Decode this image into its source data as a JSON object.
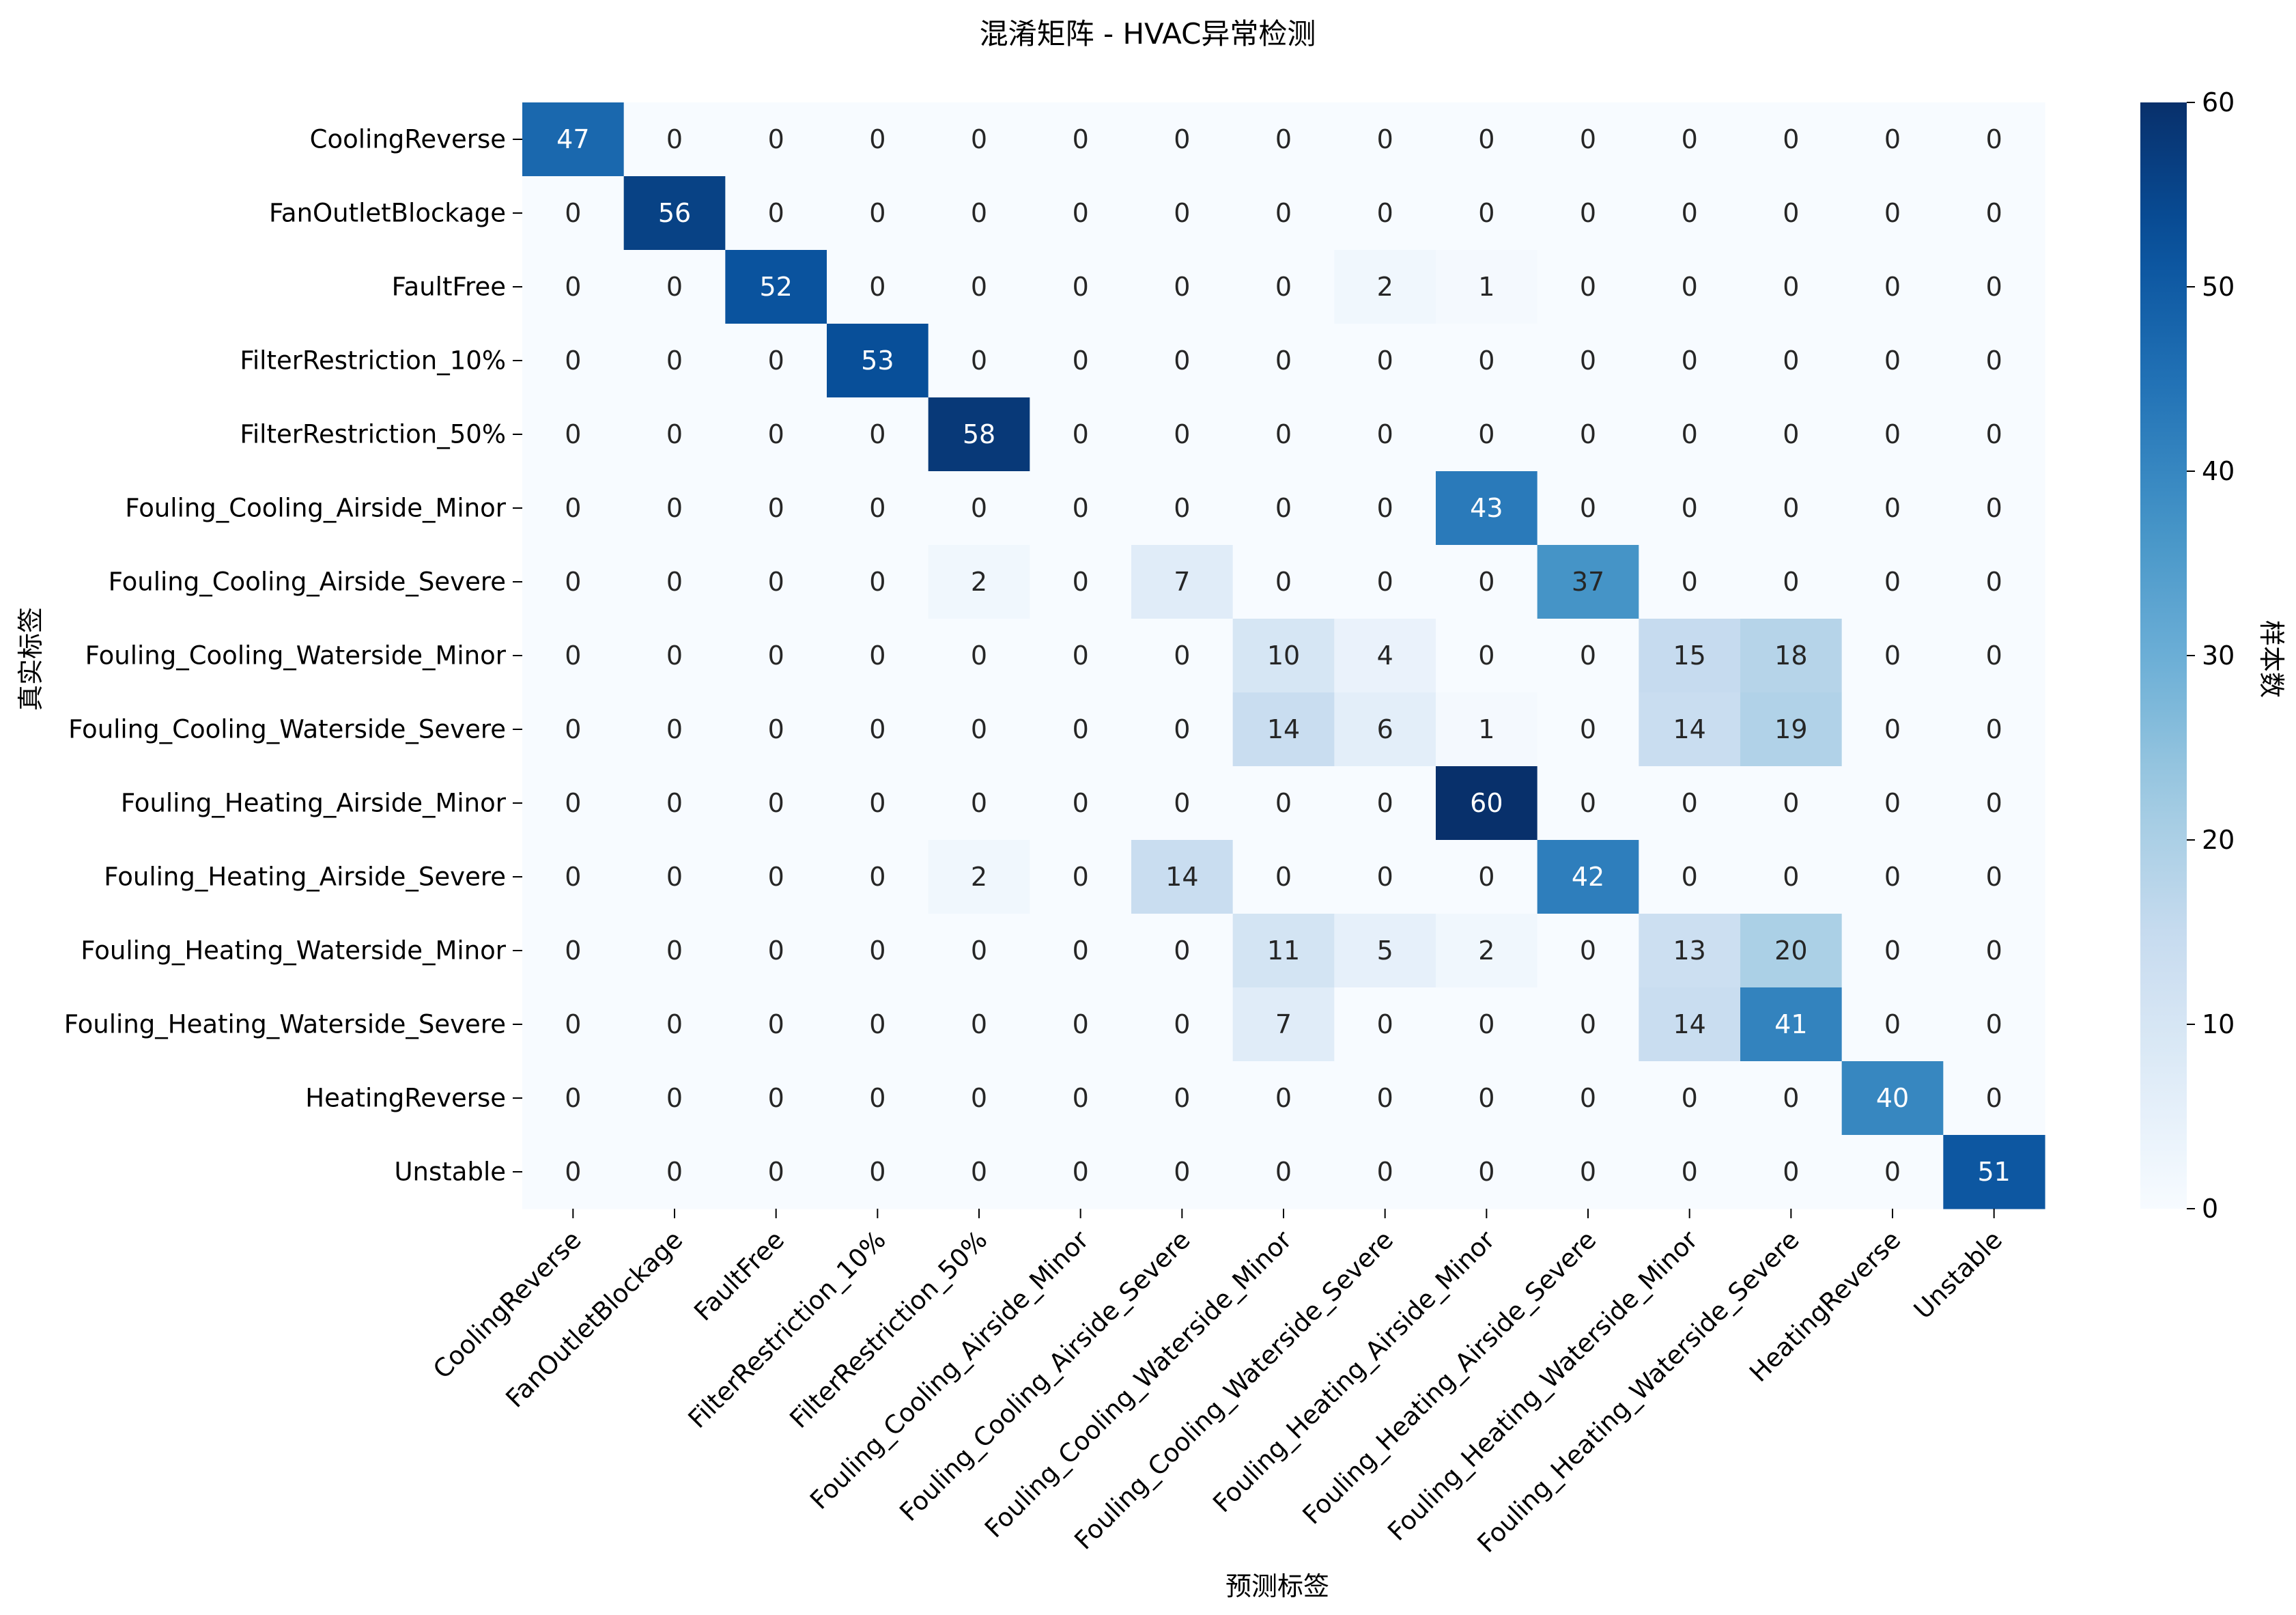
{
  "chart_data": {
    "type": "heatmap",
    "title": "混淆矩阵 - HVAC异常检测",
    "xlabel": "预测标签",
    "ylabel": "真实标签",
    "colorbar_label": "样本数",
    "colormap": "Blues",
    "colorbar_range": [
      0,
      60
    ],
    "colorbar_ticks": [
      "0",
      "10",
      "20",
      "30",
      "40",
      "50",
      "60"
    ],
    "grid": false,
    "legend": "colorbar-right",
    "labels": [
      "CoolingReverse",
      "FanOutletBlockage",
      "FaultFree",
      "FilterRestriction_10%",
      "FilterRestriction_50%",
      "Fouling_Cooling_Airside_Minor",
      "Fouling_Cooling_Airside_Severe",
      "Fouling_Cooling_Waterside_Minor",
      "Fouling_Cooling_Waterside_Severe",
      "Fouling_Heating_Airside_Minor",
      "Fouling_Heating_Airside_Severe",
      "Fouling_Heating_Waterside_Minor",
      "Fouling_Heating_Waterside_Severe",
      "HeatingReverse",
      "Unstable"
    ],
    "matrix": [
      [
        47,
        0,
        0,
        0,
        0,
        0,
        0,
        0,
        0,
        0,
        0,
        0,
        0,
        0,
        0
      ],
      [
        0,
        56,
        0,
        0,
        0,
        0,
        0,
        0,
        0,
        0,
        0,
        0,
        0,
        0,
        0
      ],
      [
        0,
        0,
        52,
        0,
        0,
        0,
        0,
        0,
        2,
        1,
        0,
        0,
        0,
        0,
        0
      ],
      [
        0,
        0,
        0,
        53,
        0,
        0,
        0,
        0,
        0,
        0,
        0,
        0,
        0,
        0,
        0
      ],
      [
        0,
        0,
        0,
        0,
        58,
        0,
        0,
        0,
        0,
        0,
        0,
        0,
        0,
        0,
        0
      ],
      [
        0,
        0,
        0,
        0,
        0,
        0,
        0,
        0,
        0,
        43,
        0,
        0,
        0,
        0,
        0
      ],
      [
        0,
        0,
        0,
        0,
        2,
        0,
        7,
        0,
        0,
        0,
        37,
        0,
        0,
        0,
        0
      ],
      [
        0,
        0,
        0,
        0,
        0,
        0,
        0,
        10,
        4,
        0,
        0,
        15,
        18,
        0,
        0
      ],
      [
        0,
        0,
        0,
        0,
        0,
        0,
        0,
        14,
        6,
        1,
        0,
        14,
        19,
        0,
        0
      ],
      [
        0,
        0,
        0,
        0,
        0,
        0,
        0,
        0,
        0,
        60,
        0,
        0,
        0,
        0,
        0
      ],
      [
        0,
        0,
        0,
        0,
        2,
        0,
        14,
        0,
        0,
        0,
        42,
        0,
        0,
        0,
        0
      ],
      [
        0,
        0,
        0,
        0,
        0,
        0,
        0,
        11,
        5,
        2,
        0,
        13,
        20,
        0,
        0
      ],
      [
        0,
        0,
        0,
        0,
        0,
        0,
        0,
        7,
        0,
        0,
        0,
        14,
        41,
        0,
        0
      ],
      [
        0,
        0,
        0,
        0,
        0,
        0,
        0,
        0,
        0,
        0,
        0,
        0,
        0,
        40,
        0
      ],
      [
        0,
        0,
        0,
        0,
        0,
        0,
        0,
        0,
        0,
        0,
        0,
        0,
        0,
        0,
        51
      ]
    ]
  }
}
